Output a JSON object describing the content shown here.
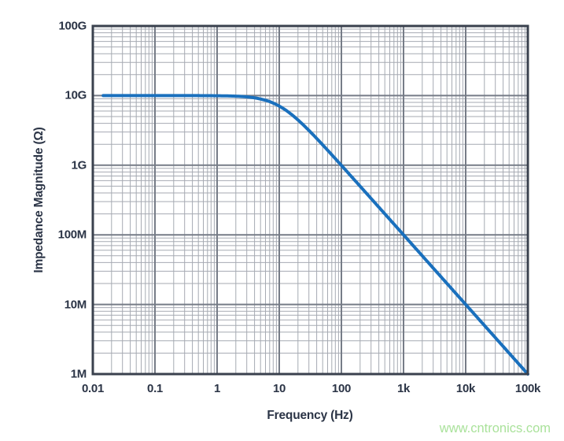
{
  "watermark": {
    "text": "www.cntronics.com",
    "color": "#aae29b"
  },
  "layout_colors": {
    "text": "#2b3446",
    "plot_border": "#3a414e",
    "major_grid": "#767c87",
    "minor_grid": "#a6aab2",
    "background": "#ffffff"
  },
  "chart_data": {
    "type": "line",
    "title": "",
    "xlabel": "Frequency (Hz)",
    "ylabel": "Impedance Magnitude (Ω)",
    "x_scale": "log",
    "y_scale": "log",
    "xlim": [
      0.01,
      100000
    ],
    "ylim": [
      1000000,
      100000000000
    ],
    "grid": {
      "major": true,
      "minor": true
    },
    "legend": "none",
    "x_ticks": [
      {
        "value": 0.01,
        "label": "0.01"
      },
      {
        "value": 0.1,
        "label": "0.1"
      },
      {
        "value": 1,
        "label": "1"
      },
      {
        "value": 10,
        "label": "10"
      },
      {
        "value": 100,
        "label": "100"
      },
      {
        "value": 1000,
        "label": "1k"
      },
      {
        "value": 10000,
        "label": "10k"
      },
      {
        "value": 100000,
        "label": "100k"
      }
    ],
    "y_ticks": [
      {
        "value": 1000000,
        "label": "1M"
      },
      {
        "value": 10000000,
        "label": "10M"
      },
      {
        "value": 100000000,
        "label": "100M"
      },
      {
        "value": 1000000000,
        "label": "1G"
      },
      {
        "value": 10000000000,
        "label": "10G"
      },
      {
        "value": 100000000000,
        "label": "100G"
      }
    ],
    "series": [
      {
        "name": "Impedance Magnitude",
        "color": "#1a70bd",
        "stroke_width": 4,
        "model": "Z = R / sqrt(1 + (f/fc)^2)",
        "r_ohms": 10000000000.0,
        "corner_hz": 10,
        "f_start_hz": 0.0147,
        "f_end_hz": 100000,
        "points": [
          [
            0.0147,
            10000000000.0
          ],
          [
            0.1,
            10000000000.0
          ],
          [
            1,
            9950000000.0
          ],
          [
            2,
            9810000000.0
          ],
          [
            5,
            8940000000.0
          ],
          [
            10,
            7070000000.0
          ],
          [
            20,
            4470000000.0
          ],
          [
            50,
            1960000000.0
          ],
          [
            100,
            995000000.0
          ],
          [
            1000,
            100000000.0
          ],
          [
            10000,
            10000000.0
          ],
          [
            100000,
            1000000.0
          ]
        ]
      }
    ]
  }
}
